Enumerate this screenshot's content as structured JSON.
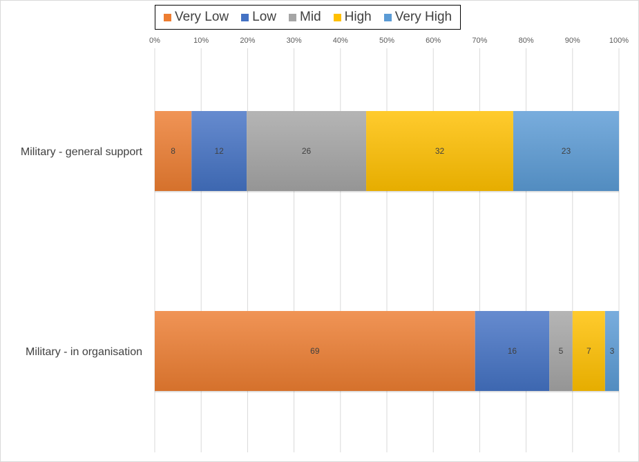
{
  "chart_data": {
    "type": "bar",
    "orientation": "horizontal",
    "stacked": "100%",
    "categories": [
      "Military - general support",
      "Military - in organisation"
    ],
    "series": [
      {
        "name": "Very Low",
        "color": "#ED7D31",
        "values": [
          8,
          69
        ]
      },
      {
        "name": "Low",
        "color": "#4472C4",
        "values": [
          12,
          16
        ]
      },
      {
        "name": "Mid",
        "color": "#A5A5A5",
        "values": [
          26,
          5
        ]
      },
      {
        "name": "High",
        "color": "#FFC000",
        "values": [
          32,
          7
        ]
      },
      {
        "name": "Very High",
        "color": "#5B9BD5",
        "values": [
          23,
          3
        ]
      }
    ],
    "x_ticks": [
      "0%",
      "10%",
      "20%",
      "30%",
      "40%",
      "50%",
      "60%",
      "70%",
      "80%",
      "90%",
      "100%"
    ],
    "xlim": [
      0,
      100
    ],
    "grid": true,
    "legend_position": "top",
    "data_labels": true
  }
}
